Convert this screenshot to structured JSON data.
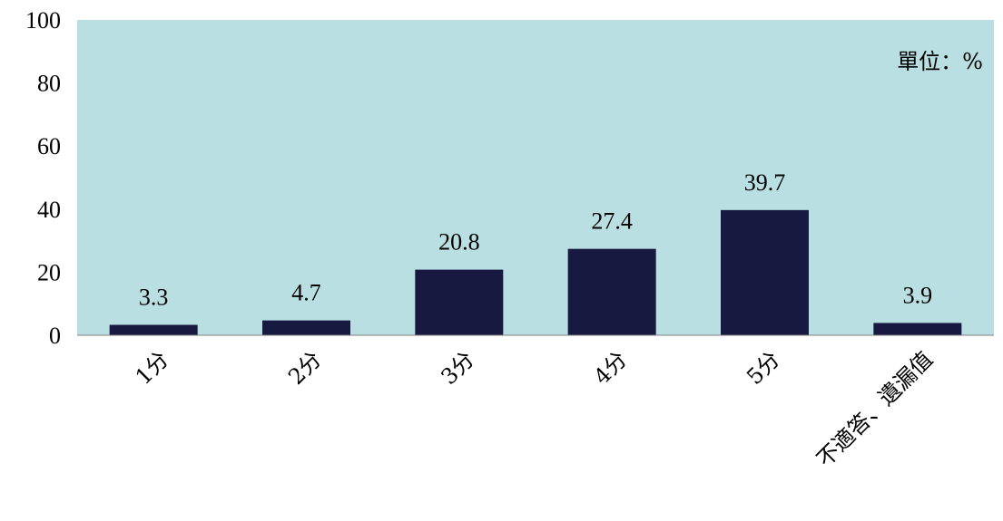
{
  "chart_data": {
    "type": "bar",
    "categories": [
      "1分",
      "2分",
      "3分",
      "4分",
      "5分",
      "不適答、遺漏值"
    ],
    "values": [
      3.3,
      4.7,
      20.8,
      27.4,
      39.7,
      3.9
    ],
    "data_labels": [
      "3.3",
      "4.7",
      "20.8",
      "27.4",
      "39.7",
      "3.9"
    ],
    "title": "",
    "xlabel": "",
    "ylabel": "",
    "unit_note": "單位：%",
    "ylim": [
      0,
      100
    ],
    "yticks": [
      "0",
      "20",
      "40",
      "60",
      "80",
      "100"
    ],
    "ytick_values": [
      0,
      20,
      40,
      60,
      80,
      100
    ],
    "grid": false,
    "colors": {
      "plot_background": "#b9dfe2",
      "bar": "#171941",
      "axis": "#808080"
    }
  }
}
